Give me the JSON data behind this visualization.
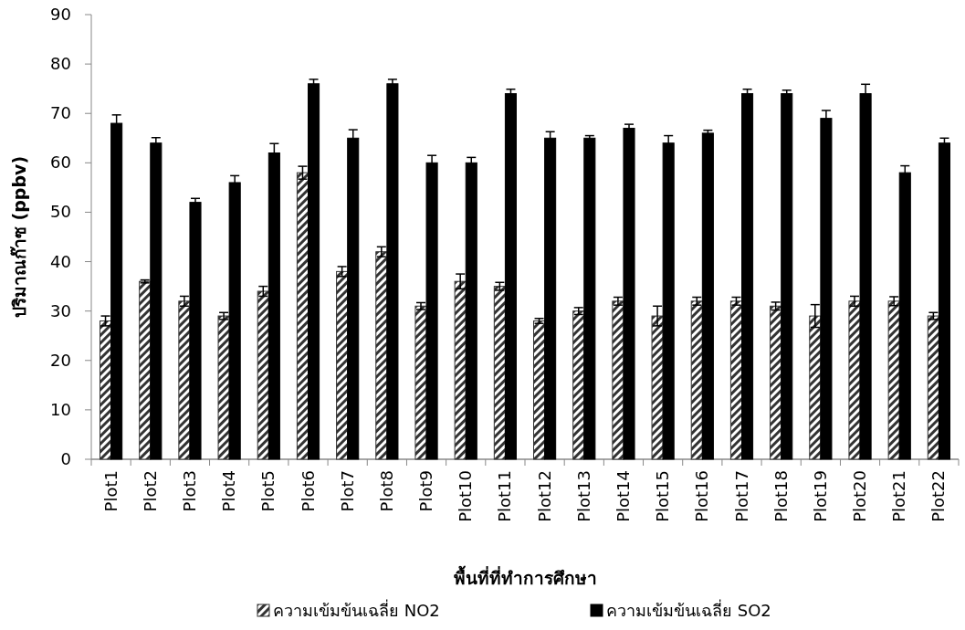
{
  "chart_data": {
    "type": "bar",
    "xlabel": "พื้นที่ที่ทำการศึกษา",
    "ylabel": "ปริมาณก๊าซ (ppbv)",
    "categories": [
      "Plot1",
      "Plot2",
      "Plot3",
      "Plot4",
      "Plot5",
      "Plot6",
      "Plot7",
      "Plot8",
      "Plot9",
      "Plot10",
      "Plot11",
      "Plot12",
      "Plot13",
      "Plot14",
      "Plot15",
      "Plot16",
      "Plot17",
      "Plot18",
      "Plot19",
      "Plot20",
      "Plot21",
      "Plot22"
    ],
    "series": [
      {
        "name": "ความเข้มข้นเฉลี่ย NO2",
        "color": "#333333",
        "values": [
          28,
          36,
          32,
          29,
          34,
          58,
          38,
          42,
          31,
          36,
          35,
          28,
          30,
          32,
          29,
          32,
          32,
          31,
          29,
          32,
          32,
          29
        ],
        "errors": [
          1,
          0.3,
          1,
          0.7,
          1,
          1.3,
          1,
          1,
          0.7,
          1.5,
          0.8,
          0.5,
          0.7,
          0.8,
          2,
          0.8,
          0.8,
          0.8,
          2.3,
          1,
          0.9,
          0.7
        ]
      },
      {
        "name": "ความเข้มข้นเฉลี่ย SO2",
        "color": "#000000",
        "values": [
          68,
          64,
          52,
          56,
          62,
          76,
          65,
          76,
          60,
          60,
          74,
          65,
          65,
          67,
          64,
          66,
          74,
          74,
          69,
          74,
          58,
          64
        ],
        "errors": [
          1.7,
          1.1,
          0.8,
          1.4,
          1.9,
          0.9,
          1.7,
          0.9,
          1.5,
          1.1,
          0.9,
          1.3,
          0.5,
          0.8,
          1.5,
          0.6,
          0.9,
          0.7,
          1.6,
          1.9,
          1.4,
          1
        ]
      }
    ],
    "ylim": [
      0,
      90
    ],
    "yticks": [
      0,
      10,
      20,
      30,
      40,
      50,
      60,
      70,
      80,
      90
    ],
    "grid": false,
    "legend": "bottom"
  }
}
